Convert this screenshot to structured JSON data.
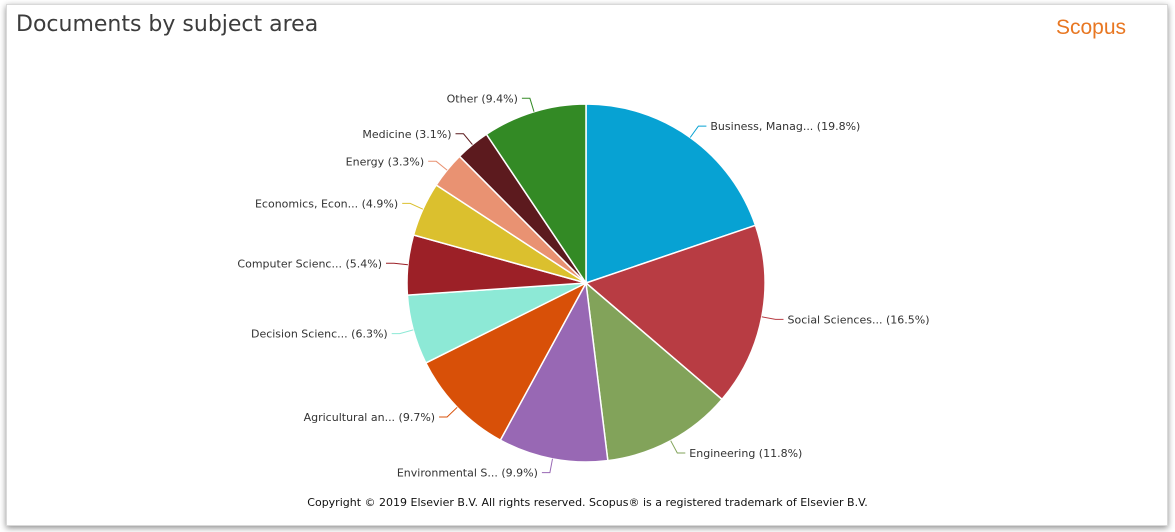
{
  "header": {
    "title": "Documents by subject area",
    "brand": "Scopus"
  },
  "footer": {
    "copyright": "Copyright © 2019 Elsevier B.V. All rights reserved. Scopus® is a registered trademark of Elsevier B.V."
  },
  "chart_data": {
    "type": "pie",
    "title": "Documents by subject area",
    "start": "12 o'clock",
    "direction": "clockwise",
    "slices": [
      {
        "label": "Business, Manag... (19.8%)",
        "value": 19.8,
        "color": "#07a2d3"
      },
      {
        "label": "Social Sciences... (16.5%)",
        "value": 16.5,
        "color": "#b83c43"
      },
      {
        "label": "Engineering (11.8%)",
        "value": 11.8,
        "color": "#82a35a"
      },
      {
        "label": "Environmental S... (9.9%)",
        "value": 9.9,
        "color": "#9868b4"
      },
      {
        "label": "Agricultural an... (9.7%)",
        "value": 9.7,
        "color": "#d85008"
      },
      {
        "label": "Decision Scienc... (6.3%)",
        "value": 6.3,
        "color": "#8de9d6"
      },
      {
        "label": "Computer Scienc... (5.4%)",
        "value": 5.4,
        "color": "#9c2027"
      },
      {
        "label": "Economics, Econ... (4.9%)",
        "value": 4.9,
        "color": "#dbc02e"
      },
      {
        "label": "Energy (3.3%)",
        "value": 3.3,
        "color": "#e99272"
      },
      {
        "label": "Medicine (3.1%)",
        "value": 3.1,
        "color": "#5c1a1e"
      },
      {
        "label": "Other (9.4%)",
        "value": 9.4,
        "color": "#338a25"
      }
    ]
  }
}
